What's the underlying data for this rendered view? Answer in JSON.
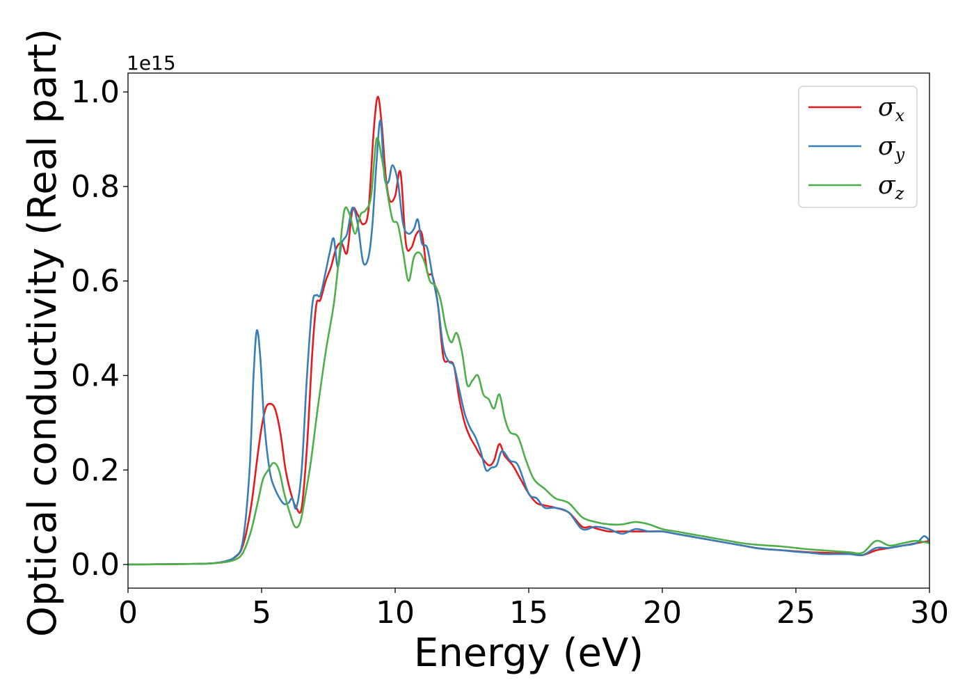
{
  "chart_data": {
    "type": "line",
    "title": "",
    "xlabel": "Energy (eV)",
    "ylabel": "Optical conductivity (Real part)",
    "y_offset_label": "1e15",
    "xlim": [
      0,
      30
    ],
    "ylim": [
      -0.05,
      1.04
    ],
    "xticks": [
      0,
      5,
      10,
      15,
      20,
      25,
      30
    ],
    "xtick_labels": [
      "0",
      "5",
      "10",
      "15",
      "20",
      "25",
      "30"
    ],
    "yticks": [
      0.0,
      0.2,
      0.4,
      0.6,
      0.8,
      1.0
    ],
    "ytick_labels": [
      "0.0",
      "0.2",
      "0.4",
      "0.6",
      "0.8",
      "1.0"
    ],
    "grid": false,
    "legend_position": "top-right",
    "series": [
      {
        "name": "σx",
        "symbol": "σ",
        "subscript": "x",
        "color": "#e41a1c",
        "x": [
          0,
          2,
          3,
          3.5,
          4,
          4.3,
          4.6,
          4.85,
          5.0,
          5.15,
          5.3,
          5.5,
          5.7,
          5.9,
          6.1,
          6.3,
          6.5,
          6.7,
          6.9,
          7.05,
          7.2,
          7.4,
          7.6,
          7.8,
          8.0,
          8.2,
          8.4,
          8.6,
          8.8,
          9.0,
          9.2,
          9.35,
          9.5,
          9.65,
          9.8,
          10.0,
          10.2,
          10.4,
          10.6,
          10.8,
          11.0,
          11.2,
          11.4,
          11.6,
          11.8,
          12.0,
          12.2,
          12.4,
          12.6,
          12.8,
          13.0,
          13.2,
          13.5,
          13.7,
          13.9,
          14.1,
          14.4,
          14.7,
          15.0,
          15.3,
          15.6,
          16.0,
          16.5,
          17.0,
          17.3,
          17.6,
          18.0,
          18.5,
          19.0,
          19.5,
          20.0,
          20.5,
          21.0,
          21.5,
          22.0,
          22.5,
          23.0,
          23.5,
          24.0,
          24.5,
          25.0,
          25.5,
          26.0,
          26.5,
          27.0,
          27.5,
          28.0,
          28.5,
          29.0,
          29.5,
          30.0
        ],
        "values": [
          0.0,
          0.001,
          0.002,
          0.005,
          0.015,
          0.04,
          0.12,
          0.23,
          0.29,
          0.33,
          0.34,
          0.33,
          0.28,
          0.2,
          0.15,
          0.12,
          0.12,
          0.25,
          0.45,
          0.55,
          0.56,
          0.6,
          0.63,
          0.67,
          0.68,
          0.66,
          0.75,
          0.74,
          0.72,
          0.75,
          0.92,
          0.99,
          0.93,
          0.82,
          0.77,
          0.78,
          0.83,
          0.68,
          0.67,
          0.7,
          0.7,
          0.62,
          0.61,
          0.55,
          0.44,
          0.43,
          0.42,
          0.35,
          0.3,
          0.27,
          0.25,
          0.23,
          0.21,
          0.22,
          0.255,
          0.23,
          0.21,
          0.18,
          0.15,
          0.13,
          0.125,
          0.12,
          0.11,
          0.08,
          0.08,
          0.075,
          0.07,
          0.07,
          0.07,
          0.07,
          0.07,
          0.065,
          0.06,
          0.055,
          0.05,
          0.045,
          0.04,
          0.035,
          0.032,
          0.03,
          0.028,
          0.026,
          0.025,
          0.024,
          0.023,
          0.02,
          0.03,
          0.035,
          0.04,
          0.045,
          0.05
        ]
      },
      {
        "name": "σy",
        "symbol": "σ",
        "subscript": "y",
        "color": "#377eb8",
        "x": [
          0,
          2,
          3,
          3.5,
          4,
          4.3,
          4.55,
          4.7,
          4.82,
          4.95,
          5.1,
          5.3,
          5.5,
          5.8,
          6.0,
          6.15,
          6.3,
          6.5,
          6.7,
          6.9,
          7.05,
          7.2,
          7.4,
          7.55,
          7.7,
          7.85,
          8.0,
          8.2,
          8.4,
          8.6,
          8.8,
          9.0,
          9.15,
          9.3,
          9.45,
          9.6,
          9.75,
          9.9,
          10.1,
          10.3,
          10.5,
          10.7,
          10.85,
          11.0,
          11.2,
          11.4,
          11.6,
          11.8,
          12.0,
          12.2,
          12.4,
          12.6,
          12.8,
          13.0,
          13.2,
          13.4,
          13.6,
          13.8,
          14.0,
          14.3,
          14.6,
          15.0,
          15.3,
          15.6,
          16.0,
          16.5,
          17.0,
          17.5,
          18.0,
          18.5,
          19.0,
          19.5,
          20.0,
          20.5,
          21.0,
          21.5,
          22.0,
          22.5,
          23.0,
          23.5,
          24.0,
          24.5,
          25.0,
          25.5,
          26.0,
          26.5,
          27.0,
          27.5,
          28.0,
          28.5,
          29.0,
          29.5,
          29.8,
          30.0
        ],
        "values": [
          0.0,
          0.001,
          0.002,
          0.005,
          0.016,
          0.05,
          0.2,
          0.4,
          0.495,
          0.44,
          0.3,
          0.2,
          0.16,
          0.13,
          0.13,
          0.14,
          0.12,
          0.2,
          0.4,
          0.55,
          0.57,
          0.57,
          0.62,
          0.66,
          0.69,
          0.63,
          0.68,
          0.7,
          0.755,
          0.72,
          0.64,
          0.65,
          0.72,
          0.85,
          0.94,
          0.82,
          0.81,
          0.845,
          0.81,
          0.72,
          0.7,
          0.71,
          0.73,
          0.68,
          0.67,
          0.61,
          0.55,
          0.46,
          0.43,
          0.42,
          0.37,
          0.32,
          0.29,
          0.27,
          0.24,
          0.2,
          0.205,
          0.21,
          0.24,
          0.22,
          0.21,
          0.15,
          0.14,
          0.12,
          0.12,
          0.11,
          0.075,
          0.08,
          0.075,
          0.065,
          0.075,
          0.07,
          0.07,
          0.065,
          0.06,
          0.055,
          0.05,
          0.045,
          0.04,
          0.035,
          0.032,
          0.03,
          0.027,
          0.025,
          0.022,
          0.022,
          0.022,
          0.02,
          0.035,
          0.035,
          0.04,
          0.045,
          0.06,
          0.05
        ]
      },
      {
        "name": "σz",
        "symbol": "σ",
        "subscript": "z",
        "color": "#4daf4a",
        "x": [
          0,
          2,
          3,
          3.5,
          4,
          4.3,
          4.6,
          4.85,
          5.05,
          5.25,
          5.45,
          5.65,
          5.85,
          6.05,
          6.25,
          6.45,
          6.65,
          6.85,
          7.1,
          7.4,
          7.7,
          7.9,
          8.1,
          8.3,
          8.5,
          8.7,
          8.9,
          9.1,
          9.3,
          9.5,
          9.7,
          9.9,
          10.1,
          10.3,
          10.5,
          10.7,
          10.9,
          11.1,
          11.3,
          11.5,
          11.7,
          11.9,
          12.1,
          12.3,
          12.5,
          12.7,
          12.9,
          13.1,
          13.3,
          13.5,
          13.7,
          13.9,
          14.1,
          14.3,
          14.6,
          14.9,
          15.2,
          15.6,
          16.0,
          16.5,
          17.0,
          17.5,
          18.0,
          18.5,
          19.0,
          19.5,
          20.0,
          20.5,
          21.0,
          21.5,
          22.0,
          22.5,
          23.0,
          23.5,
          24.0,
          24.5,
          25.0,
          25.5,
          26.0,
          26.5,
          27.0,
          27.5,
          28.0,
          28.5,
          29.0,
          29.5,
          30.0
        ],
        "values": [
          0.0,
          0.001,
          0.002,
          0.004,
          0.01,
          0.025,
          0.07,
          0.13,
          0.18,
          0.2,
          0.215,
          0.2,
          0.15,
          0.11,
          0.08,
          0.09,
          0.15,
          0.22,
          0.33,
          0.45,
          0.55,
          0.65,
          0.75,
          0.74,
          0.7,
          0.74,
          0.75,
          0.78,
          0.9,
          0.86,
          0.79,
          0.73,
          0.72,
          0.66,
          0.6,
          0.65,
          0.66,
          0.64,
          0.6,
          0.59,
          0.56,
          0.5,
          0.47,
          0.49,
          0.45,
          0.38,
          0.39,
          0.4,
          0.36,
          0.35,
          0.33,
          0.36,
          0.31,
          0.28,
          0.27,
          0.22,
          0.18,
          0.16,
          0.14,
          0.13,
          0.1,
          0.09,
          0.085,
          0.085,
          0.09,
          0.085,
          0.075,
          0.07,
          0.065,
          0.06,
          0.055,
          0.05,
          0.045,
          0.042,
          0.04,
          0.038,
          0.035,
          0.032,
          0.03,
          0.028,
          0.026,
          0.025,
          0.05,
          0.04,
          0.045,
          0.05,
          0.045
        ]
      }
    ]
  }
}
